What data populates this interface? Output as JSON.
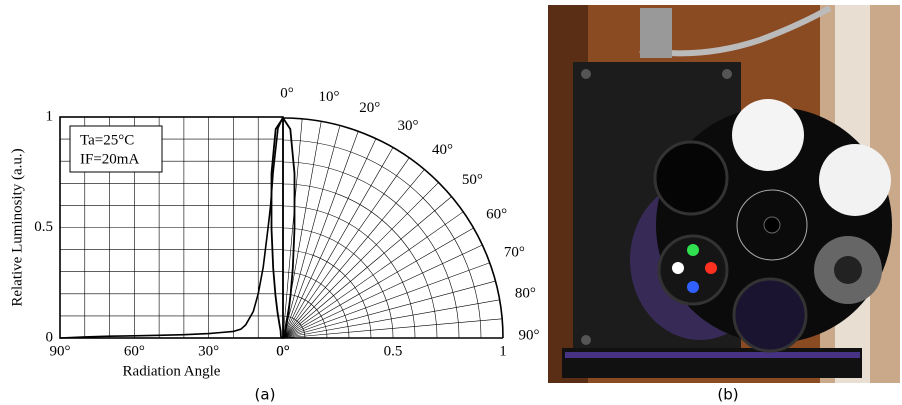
{
  "chart_data": [
    {
      "type": "line",
      "x_label": "Radiation Angle",
      "y_label": "Relative Luminosity (a.u.)",
      "annotations": [
        "Ta=25°C",
        "IF=20mA"
      ],
      "x": [
        0,
        2,
        4,
        5,
        6,
        8,
        10,
        12,
        15,
        17,
        20,
        25,
        30,
        40,
        50,
        60,
        70,
        80,
        90
      ],
      "values": [
        1,
        0.95,
        0.75,
        0.6,
        0.5,
        0.32,
        0.2,
        0.12,
        0.06,
        0.04,
        0.03,
        0.025,
        0.02,
        0.015,
        0.012,
        0.01,
        0.008,
        0.005,
        0
      ],
      "color": "#000000",
      "xlim": [
        90,
        0
      ],
      "ylim": [
        0,
        1
      ],
      "xticks": [
        {
          "value": 90,
          "label": "90°"
        },
        {
          "value": 60,
          "label": "60°"
        },
        {
          "value": 30,
          "label": "30°"
        },
        {
          "value": 0,
          "label": "0°"
        }
      ],
      "yticks": [
        0,
        0.5,
        1
      ],
      "x_minor_ticks": [
        10,
        20,
        40,
        50,
        70,
        80
      ],
      "y_minor_ticks": [
        0.1,
        0.2,
        0.3,
        0.4,
        0.6,
        0.7,
        0.8,
        0.9
      ],
      "grid": true,
      "caption": "(a)"
    },
    {
      "type": "polar",
      "theta": [
        0,
        2,
        4,
        5,
        6,
        8,
        10,
        12,
        15,
        17,
        20,
        25,
        30,
        40,
        50,
        60,
        70,
        80,
        90
      ],
      "r": [
        1,
        0.95,
        0.75,
        0.6,
        0.5,
        0.32,
        0.2,
        0.12,
        0.06,
        0.04,
        0.03,
        0.025,
        0.02,
        0.015,
        0.012,
        0.01,
        0.008,
        0.005,
        0
      ],
      "color": "#000000",
      "rlim": [
        0,
        1
      ],
      "thetalim": [
        0,
        90
      ],
      "rticks": [
        {
          "value": 0,
          "label": "0°"
        },
        0.5,
        1
      ],
      "r_minor_ticks": [
        0.1,
        0.2,
        0.3,
        0.4,
        0.6,
        0.7,
        0.8,
        0.9
      ],
      "theta_ticks": [
        {
          "value": 0,
          "label": "0°"
        },
        {
          "value": 10,
          "label": "10°"
        },
        {
          "value": 20,
          "label": "20°"
        },
        {
          "value": 30,
          "label": "30°"
        },
        {
          "value": 40,
          "label": "40°"
        },
        {
          "value": 50,
          "label": "50°"
        },
        {
          "value": 60,
          "label": "60°"
        },
        {
          "value": 70,
          "label": "70°"
        },
        {
          "value": 80,
          "label": "80°"
        },
        {
          "value": 90,
          "label": "90°"
        }
      ],
      "theta_minor_ticks": [
        5,
        15,
        25,
        35,
        45,
        55,
        65,
        75,
        85
      ],
      "grid": true
    }
  ],
  "photo": {
    "caption": "(b)"
  }
}
